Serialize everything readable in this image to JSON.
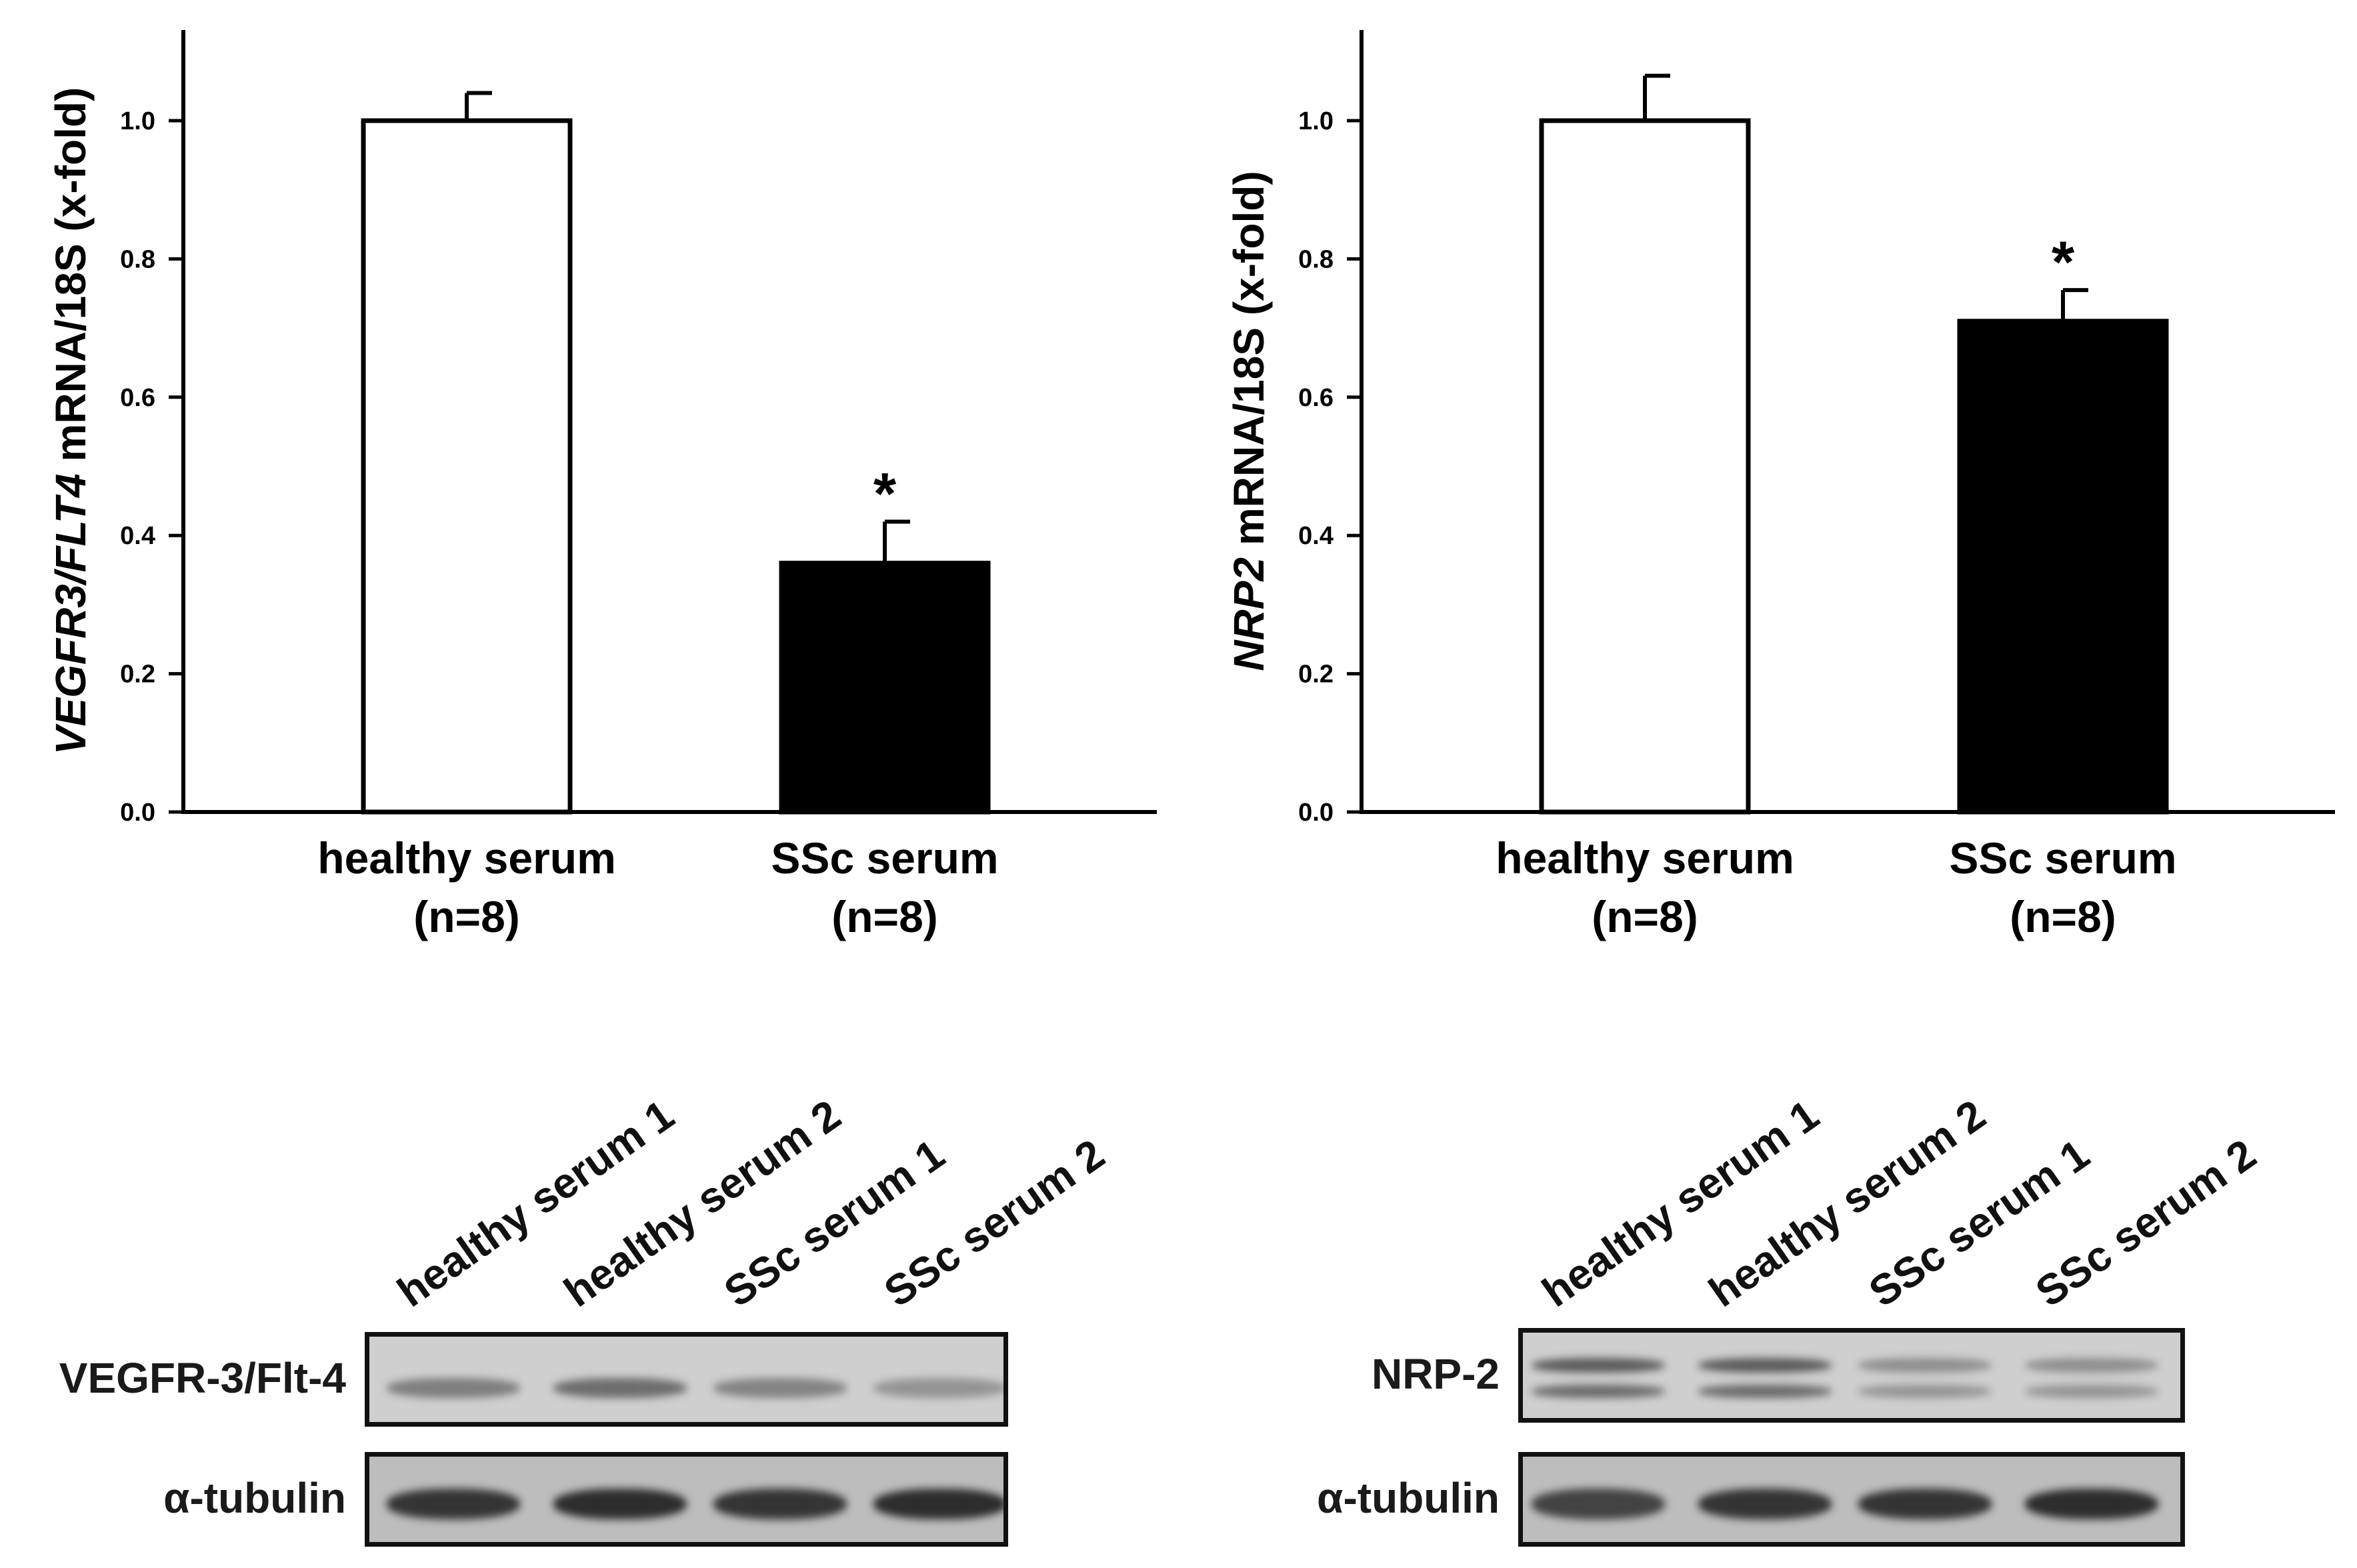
{
  "chart_data": [
    {
      "type": "bar",
      "categories": [
        "healthy serum (n=8)",
        "SSc serum (n=8)"
      ],
      "category_lines": [
        [
          "healthy serum",
          "(n=8)"
        ],
        [
          "SSc serum",
          "(n=8)"
        ]
      ],
      "values": [
        1.0,
        0.36
      ],
      "errors": [
        0.04,
        0.06
      ],
      "bar_colors": [
        "#ffffff",
        "#000000"
      ],
      "significance": [
        "",
        "*"
      ],
      "ylabel_parts": [
        {
          "text": "VEGFR3/FLT4",
          "italic": true
        },
        {
          "text": " mRNA/18S (x-fold)",
          "italic": false
        }
      ],
      "ylim": [
        0,
        1.1
      ],
      "yticks": [
        "0.0",
        "0.2",
        "0.4",
        "0.6",
        "0.8",
        "1.0"
      ],
      "grid": false
    },
    {
      "type": "bar",
      "categories": [
        "healthy serum (n=8)",
        "SSc serum (n=8)"
      ],
      "category_lines": [
        [
          "healthy serum",
          "(n=8)"
        ],
        [
          "SSc serum",
          "(n=8)"
        ]
      ],
      "values": [
        1.0,
        0.71
      ],
      "errors": [
        0.065,
        0.045
      ],
      "bar_colors": [
        "#ffffff",
        "#000000"
      ],
      "significance": [
        "",
        "*"
      ],
      "ylabel_parts": [
        {
          "text": "NRP2",
          "italic": true
        },
        {
          "text": " mRNA/18S (x-fold)",
          "italic": false
        }
      ],
      "ylim": [
        0,
        1.1
      ],
      "yticks": [
        "0.0",
        "0.2",
        "0.4",
        "0.6",
        "0.8",
        "1.0"
      ],
      "grid": false
    }
  ],
  "blots": [
    {
      "lanes": [
        "healthy serum 1",
        "healthy serum 2",
        "SSc serum 1",
        "SSc serum 2"
      ],
      "rows": [
        {
          "label": "VEGFR-3/Flt-4",
          "band_intensity": [
            0.55,
            0.7,
            0.5,
            0.35
          ]
        },
        {
          "label": "α-tubulin",
          "band_intensity": [
            0.95,
            1.0,
            0.95,
            1.0
          ]
        }
      ]
    },
    {
      "lanes": [
        "healthy serum 1",
        "healthy serum 2",
        "SSc serum 1",
        "SSc serum 2"
      ],
      "rows": [
        {
          "label": "NRP-2",
          "band_intensity": [
            0.85,
            0.85,
            0.35,
            0.35
          ]
        },
        {
          "label": "α-tubulin",
          "band_intensity": [
            0.85,
            0.95,
            0.95,
            1.0
          ]
        }
      ]
    }
  ]
}
